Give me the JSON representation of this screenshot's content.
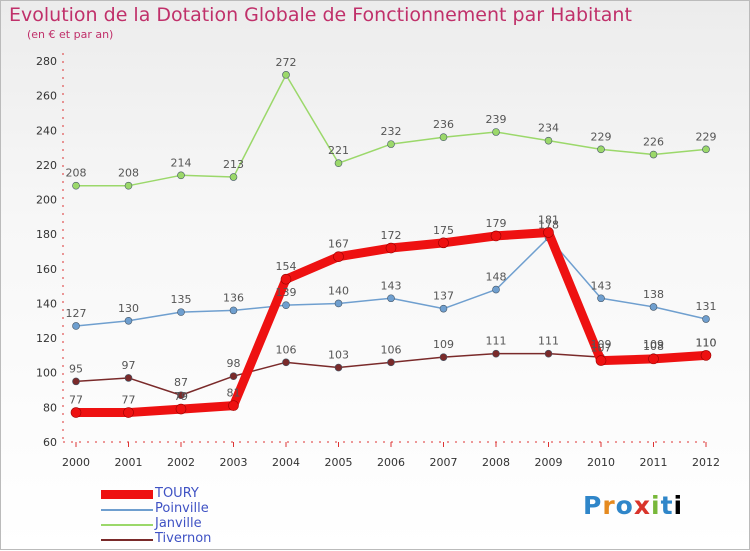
{
  "chart_data": {
    "type": "line",
    "title": "Evolution de la Dotation Globale de Fonctionnement par Habitant",
    "subtitle": "(en € et par an)",
    "xlabel": "",
    "ylabel": "",
    "x": [
      "2000",
      "2001",
      "2002",
      "2003",
      "2004",
      "2005",
      "2006",
      "2007",
      "2008",
      "2009",
      "2010",
      "2011",
      "2012"
    ],
    "ylim": [
      60,
      280
    ],
    "yticks": [
      60,
      80,
      100,
      120,
      140,
      160,
      180,
      200,
      220,
      240,
      260,
      280
    ],
    "grid": false,
    "legend_position": "bottom-left",
    "series": [
      {
        "name": "TOURY",
        "color": "#ee1111",
        "line_width": 9,
        "values": [
          77,
          77,
          79,
          81,
          154,
          167,
          172,
          175,
          179,
          181,
          107,
          108,
          110
        ],
        "labels": [
          "77",
          "77",
          "79",
          "81",
          "154",
          "167",
          "172",
          "175",
          "179",
          "181",
          "107",
          "108",
          "110"
        ]
      },
      {
        "name": "Poinville",
        "color": "#6f9fcf",
        "line_width": 1.5,
        "values": [
          127,
          130,
          135,
          136,
          139,
          140,
          143,
          137,
          148,
          178,
          143,
          138,
          131
        ],
        "labels": [
          "127",
          "130",
          "135",
          "136",
          "139",
          "140",
          "143",
          "137",
          "148",
          "178",
          "143",
          "138",
          "131"
        ]
      },
      {
        "name": "Janville",
        "color": "#9bd86a",
        "line_width": 1.5,
        "values": [
          208,
          208,
          214,
          213,
          272,
          221,
          232,
          236,
          239,
          234,
          229,
          226,
          229
        ],
        "labels": [
          "208",
          "208",
          "214",
          "213",
          "272",
          "221",
          "232",
          "236",
          "239",
          "234",
          "229",
          "226",
          "229"
        ]
      },
      {
        "name": "Tivernon",
        "color": "#7a2a2a",
        "line_width": 1.5,
        "values": [
          95,
          97,
          87,
          98,
          106,
          103,
          106,
          109,
          111,
          111,
          109,
          109,
          110
        ],
        "labels": [
          "95",
          "97",
          "87",
          "98",
          "106",
          "103",
          "106",
          "109",
          "111",
          "111",
          "109",
          "109",
          "110"
        ]
      }
    ]
  },
  "logo": {
    "letters": [
      "P",
      "r",
      "o",
      "x",
      "i",
      "t",
      "i"
    ],
    "text": "Proxiti"
  }
}
